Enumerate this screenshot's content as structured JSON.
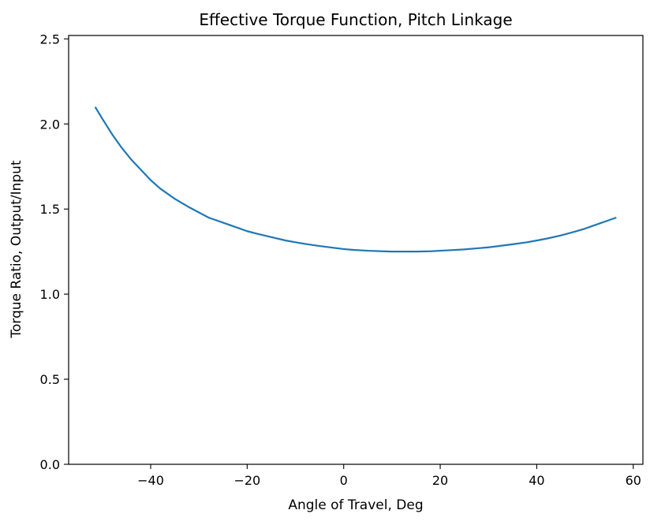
{
  "chart_data": {
    "type": "line",
    "title": "Effective Torque Function, Pitch Linkage",
    "xlabel": "Angle of Travel, Deg",
    "ylabel": "Torque Ratio, Output/Input",
    "xlim": [
      -57,
      62
    ],
    "ylim": [
      0.0,
      2.52
    ],
    "xticks": [
      -40,
      -20,
      0,
      20,
      40,
      60
    ],
    "xtick_labels": [
      "−40",
      "−20",
      "0",
      "20",
      "40",
      "60"
    ],
    "yticks": [
      0.0,
      0.5,
      1.0,
      1.5,
      2.0,
      2.5
    ],
    "ytick_labels": [
      "0.0",
      "0.5",
      "1.0",
      "1.5",
      "2.0",
      "2.5"
    ],
    "grid": false,
    "series": [
      {
        "color": "#1f77b4",
        "x": [
          -51.5,
          -50,
          -48,
          -46,
          -44,
          -42,
          -40,
          -38,
          -35,
          -32,
          -30,
          -28,
          -25,
          -22,
          -20,
          -18,
          -15,
          -12,
          -10,
          -8,
          -5,
          -2,
          0,
          2,
          5,
          8,
          10,
          12,
          15,
          18,
          20,
          22,
          25,
          28,
          30,
          32,
          35,
          38,
          40,
          42,
          45,
          48,
          50,
          52,
          54,
          56.5
        ],
        "y": [
          2.1,
          2.03,
          1.94,
          1.86,
          1.79,
          1.73,
          1.67,
          1.62,
          1.56,
          1.51,
          1.48,
          1.45,
          1.42,
          1.39,
          1.37,
          1.355,
          1.335,
          1.315,
          1.305,
          1.295,
          1.283,
          1.272,
          1.265,
          1.26,
          1.255,
          1.252,
          1.25,
          1.25,
          1.25,
          1.252,
          1.255,
          1.258,
          1.263,
          1.27,
          1.275,
          1.282,
          1.293,
          1.305,
          1.315,
          1.326,
          1.345,
          1.368,
          1.385,
          1.405,
          1.425,
          1.45
        ]
      }
    ]
  }
}
